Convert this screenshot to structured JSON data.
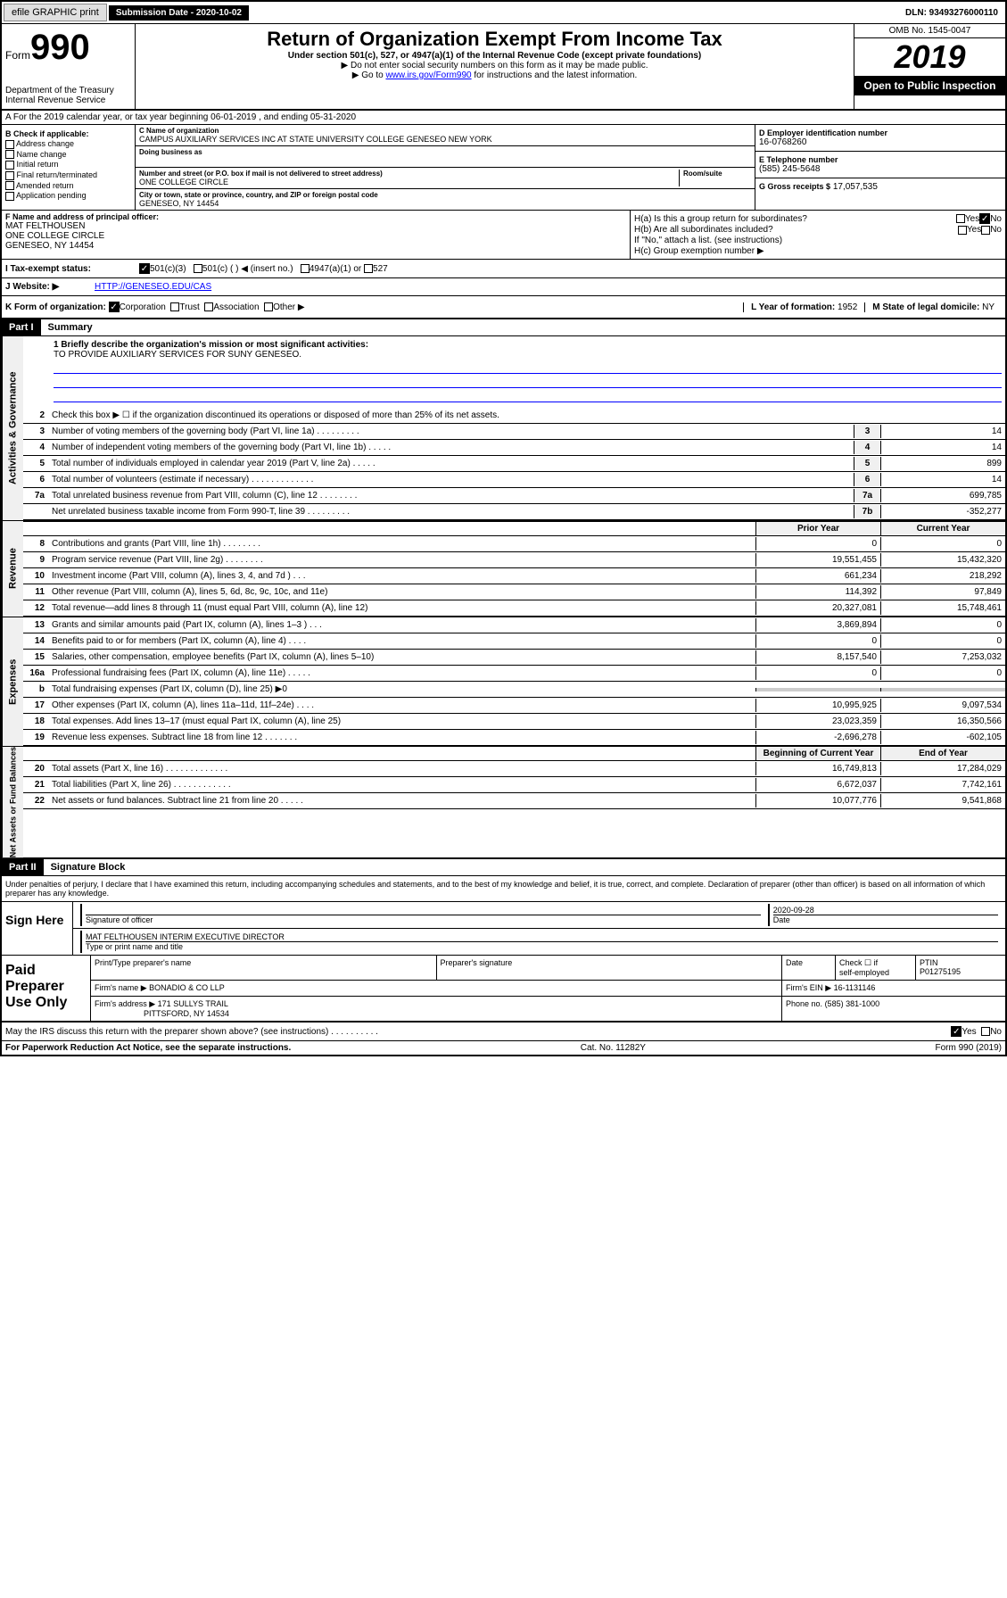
{
  "topbar": {
    "efile": "efile GRAPHIC print",
    "subdate_lbl": "Submission Date - 2020-10-02",
    "dln": "DLN: 93493276000110"
  },
  "header": {
    "form_word": "Form",
    "form_num": "990",
    "title": "Return of Organization Exempt From Income Tax",
    "subtitle": "Under section 501(c), 527, or 4947(a)(1) of the Internal Revenue Code (except private foundations)",
    "note1": "▶ Do not enter social security numbers on this form as it may be made public.",
    "note2_pre": "▶ Go to ",
    "note2_link": "www.irs.gov/Form990",
    "note2_post": " for instructions and the latest information.",
    "omb": "OMB No. 1545-0047",
    "year": "2019",
    "open": "Open to Public Inspection",
    "dept": "Department of the Treasury Internal Revenue Service"
  },
  "section_a": "A For the 2019 calendar year, or tax year beginning 06-01-2019 , and ending 05-31-2020",
  "box_b": {
    "title": "B Check if applicable:",
    "items": [
      "Address change",
      "Name change",
      "Initial return",
      "Final return/terminated",
      "Amended return",
      "Application pending"
    ]
  },
  "box_c": {
    "name_lbl": "C Name of organization",
    "name": "CAMPUS AUXILIARY SERVICES INC AT STATE UNIVERSITY COLLEGE GENESEO NEW YORK",
    "dba_lbl": "Doing business as",
    "addr_lbl": "Number and street (or P.O. box if mail is not delivered to street address)",
    "room_lbl": "Room/suite",
    "addr": "ONE COLLEGE CIRCLE",
    "city_lbl": "City or town, state or province, country, and ZIP or foreign postal code",
    "city": "GENESEO, NY  14454"
  },
  "box_d": {
    "lbl": "D Employer identification number",
    "val": "16-0768260"
  },
  "box_e": {
    "lbl": "E Telephone number",
    "val": "(585) 245-5648"
  },
  "box_g": {
    "lbl": "G Gross receipts $",
    "val": "17,057,535"
  },
  "box_f": {
    "lbl": "F Name and address of principal officer:",
    "name": "MAT FELTHOUSEN",
    "addr1": "ONE COLLEGE CIRCLE",
    "addr2": "GENESEO, NY  14454"
  },
  "box_h": {
    "ha": "H(a) Is this a group return for subordinates?",
    "hb": "H(b) Are all subordinates included?",
    "hb_note": "If \"No,\" attach a list. (see instructions)",
    "hc": "H(c) Group exemption number ▶",
    "yes": "Yes",
    "no": "No"
  },
  "tax_status": {
    "lbl": "I   Tax-exempt status:",
    "opt1": "501(c)(3)",
    "opt2": "501(c) (   ) ◀ (insert no.)",
    "opt3": "4947(a)(1) or",
    "opt4": "527"
  },
  "website": {
    "lbl": "J   Website: ▶",
    "val": "HTTP://GENESEO.EDU/CAS"
  },
  "box_k": {
    "lbl": "K Form of organization:",
    "opts": [
      "Corporation",
      "Trust",
      "Association",
      "Other ▶"
    ],
    "l_lbl": "L Year of formation:",
    "l_val": "1952",
    "m_lbl": "M State of legal domicile:",
    "m_val": "NY"
  },
  "part1": {
    "hdr": "Part I",
    "title": "Summary"
  },
  "mission": {
    "q": "1  Briefly describe the organization's mission or most significant activities:",
    "a": "TO PROVIDE AUXILIARY SERVICES FOR SUNY GENESEO."
  },
  "governance": {
    "label": "Activities & Governance",
    "line2": "Check this box ▶ ☐ if the organization discontinued its operations or disposed of more than 25% of its net assets.",
    "rows": [
      {
        "n": "3",
        "d": "Number of voting members of the governing body (Part VI, line 1a) . . . . . . . . .",
        "c": "3",
        "v": "14"
      },
      {
        "n": "4",
        "d": "Number of independent voting members of the governing body (Part VI, line 1b) . . . . .",
        "c": "4",
        "v": "14"
      },
      {
        "n": "5",
        "d": "Total number of individuals employed in calendar year 2019 (Part V, line 2a) . . . . .",
        "c": "5",
        "v": "899"
      },
      {
        "n": "6",
        "d": "Total number of volunteers (estimate if necessary) . . . . . . . . . . . . .",
        "c": "6",
        "v": "14"
      },
      {
        "n": "7a",
        "d": "Total unrelated business revenue from Part VIII, column (C), line 12 . . . . . . . .",
        "c": "7a",
        "v": "699,785"
      },
      {
        "n": "",
        "d": "Net unrelated business taxable income from Form 990-T, line 39 . . . . . . . . .",
        "c": "7b",
        "v": "-352,277"
      }
    ]
  },
  "revenue": {
    "label": "Revenue",
    "hdr_prior": "Prior Year",
    "hdr_curr": "Current Year",
    "rows": [
      {
        "n": "8",
        "d": "Contributions and grants (Part VIII, line 1h) . . . . . . . .",
        "p": "0",
        "c": "0"
      },
      {
        "n": "9",
        "d": "Program service revenue (Part VIII, line 2g) . . . . . . . .",
        "p": "19,551,455",
        "c": "15,432,320"
      },
      {
        "n": "10",
        "d": "Investment income (Part VIII, column (A), lines 3, 4, and 7d ) . . .",
        "p": "661,234",
        "c": "218,292"
      },
      {
        "n": "11",
        "d": "Other revenue (Part VIII, column (A), lines 5, 6d, 8c, 9c, 10c, and 11e)",
        "p": "114,392",
        "c": "97,849"
      },
      {
        "n": "12",
        "d": "Total revenue—add lines 8 through 11 (must equal Part VIII, column (A), line 12)",
        "p": "20,327,081",
        "c": "15,748,461"
      }
    ]
  },
  "expenses": {
    "label": "Expenses",
    "rows": [
      {
        "n": "13",
        "d": "Grants and similar amounts paid (Part IX, column (A), lines 1–3 ) . . .",
        "p": "3,869,894",
        "c": "0"
      },
      {
        "n": "14",
        "d": "Benefits paid to or for members (Part IX, column (A), line 4) . . . .",
        "p": "0",
        "c": "0"
      },
      {
        "n": "15",
        "d": "Salaries, other compensation, employee benefits (Part IX, column (A), lines 5–10)",
        "p": "8,157,540",
        "c": "7,253,032"
      },
      {
        "n": "16a",
        "d": "Professional fundraising fees (Part IX, column (A), line 11e) . . . . .",
        "p": "0",
        "c": "0"
      },
      {
        "n": "b",
        "d": "Total fundraising expenses (Part IX, column (D), line 25) ▶0",
        "p": "",
        "c": ""
      },
      {
        "n": "17",
        "d": "Other expenses (Part IX, column (A), lines 11a–11d, 11f–24e) . . . .",
        "p": "10,995,925",
        "c": "9,097,534"
      },
      {
        "n": "18",
        "d": "Total expenses. Add lines 13–17 (must equal Part IX, column (A), line 25)",
        "p": "23,023,359",
        "c": "16,350,566"
      },
      {
        "n": "19",
        "d": "Revenue less expenses. Subtract line 18 from line 12 . . . . . . .",
        "p": "-2,696,278",
        "c": "-602,105"
      }
    ]
  },
  "netassets": {
    "label": "Net Assets or Fund Balances",
    "hdr_beg": "Beginning of Current Year",
    "hdr_end": "End of Year",
    "rows": [
      {
        "n": "20",
        "d": "Total assets (Part X, line 16) . . . . . . . . . . . . .",
        "p": "16,749,813",
        "c": "17,284,029"
      },
      {
        "n": "21",
        "d": "Total liabilities (Part X, line 26) . . . . . . . . . . . .",
        "p": "6,672,037",
        "c": "7,742,161"
      },
      {
        "n": "22",
        "d": "Net assets or fund balances. Subtract line 21 from line 20 . . . . .",
        "p": "10,077,776",
        "c": "9,541,868"
      }
    ]
  },
  "part2": {
    "hdr": "Part II",
    "title": "Signature Block"
  },
  "perjury": "Under penalties of perjury, I declare that I have examined this return, including accompanying schedules and statements, and to the best of my knowledge and belief, it is true, correct, and complete. Declaration of preparer (other than officer) is based on all information of which preparer has any knowledge.",
  "sign": {
    "here": "Sign Here",
    "date": "2020-09-28",
    "sig_lbl": "Signature of officer",
    "date_lbl": "Date",
    "name": "MAT FELTHOUSEN INTERIM EXECUTIVE DIRECTOR",
    "name_lbl": "Type or print name and title"
  },
  "paid": {
    "label": "Paid Preparer Use Only",
    "h1": "Print/Type preparer's name",
    "h2": "Preparer's signature",
    "h3": "Date",
    "h4a": "Check ☐ if",
    "h4b": "self-employed",
    "h5": "PTIN",
    "ptin": "P01275195",
    "firm_lbl": "Firm's name   ▶",
    "firm": "BONADIO & CO LLP",
    "ein_lbl": "Firm's EIN ▶",
    "ein": "16-1131146",
    "addr_lbl": "Firm's address ▶",
    "addr1": "171 SULLYS TRAIL",
    "addr2": "PITTSFORD, NY  14534",
    "phone_lbl": "Phone no.",
    "phone": "(585) 381-1000"
  },
  "discuss": {
    "q": "May the IRS discuss this return with the preparer shown above? (see instructions) . . . . . . . . . .",
    "yes": "Yes",
    "no": "No"
  },
  "footer": {
    "left": "For Paperwork Reduction Act Notice, see the separate instructions.",
    "center": "Cat. No. 11282Y",
    "right": "Form 990 (2019)"
  }
}
